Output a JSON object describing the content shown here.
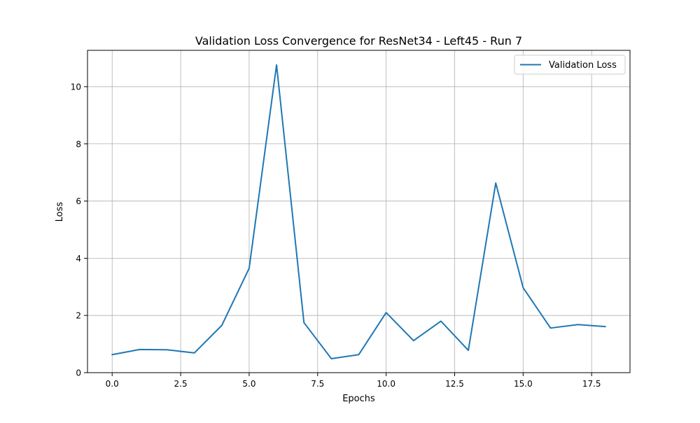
{
  "chart_data": {
    "type": "line",
    "title": "Validation Loss Convergence for ResNet34 - Left45 - Run 7",
    "xlabel": "Epochs",
    "ylabel": "Loss",
    "xlim": [
      -0.9,
      18.9
    ],
    "ylim": [
      0,
      11.27
    ],
    "xticks": [
      0.0,
      2.5,
      5.0,
      7.5,
      10.0,
      12.5,
      15.0,
      17.5
    ],
    "xtick_labels": [
      "0.0",
      "2.5",
      "5.0",
      "7.5",
      "10.0",
      "12.5",
      "15.0",
      "17.5"
    ],
    "yticks": [
      0,
      2,
      4,
      6,
      8,
      10
    ],
    "ytick_labels": [
      "0",
      "2",
      "4",
      "6",
      "8",
      "10"
    ],
    "grid": true,
    "legend_position": "top-right",
    "series": [
      {
        "name": "Validation Loss",
        "color": "#1f77b4",
        "x": [
          0,
          1,
          2,
          3,
          4,
          5,
          6,
          7,
          8,
          9,
          10,
          11,
          12,
          13,
          14,
          15,
          16,
          17,
          18
        ],
        "y": [
          0.63,
          0.81,
          0.8,
          0.69,
          1.65,
          3.65,
          10.76,
          1.75,
          0.49,
          0.63,
          2.1,
          1.12,
          1.8,
          0.78,
          6.63,
          2.97,
          1.56,
          1.68,
          1.61
        ]
      }
    ]
  }
}
